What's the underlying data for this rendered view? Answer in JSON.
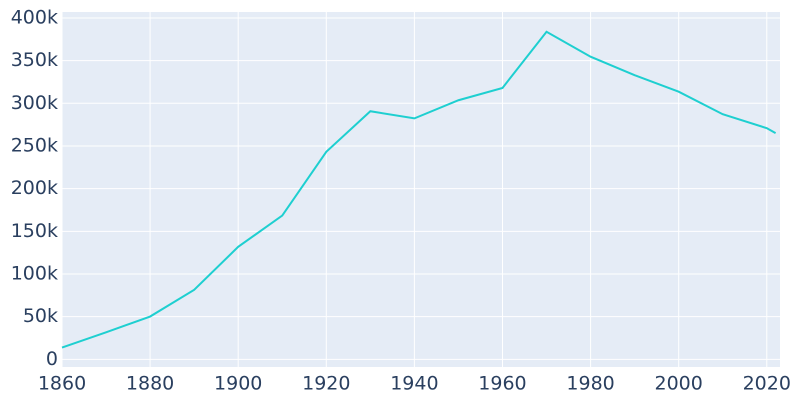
{
  "chart_data": {
    "type": "line",
    "x": [
      1860,
      1870,
      1880,
      1890,
      1900,
      1910,
      1920,
      1930,
      1940,
      1950,
      1960,
      1970,
      1980,
      1990,
      2000,
      2010,
      2020,
      2022
    ],
    "series": [
      {
        "color": "#1ecfd0",
        "values": [
          13768,
          31584,
          50137,
          81434,
          131822,
          168497,
          243164,
          290718,
          282349,
          303616,
          318003,
          383818,
          354635,
          332943,
          313619,
          287208,
          270871,
          265000
        ]
      }
    ],
    "xlim": [
      1860,
      2023
    ],
    "ylim": [
      -9000,
      407000
    ],
    "xticks": [
      1860,
      1880,
      1900,
      1920,
      1940,
      1960,
      1980,
      2000,
      2020
    ],
    "yticks": [
      0,
      {
        "value": 50000,
        "label": "50k"
      },
      {
        "value": 100000,
        "label": "100k"
      },
      {
        "value": 150000,
        "label": "150k"
      },
      {
        "value": 200000,
        "label": "200k"
      },
      {
        "value": 250000,
        "label": "250k"
      },
      {
        "value": 300000,
        "label": "300k"
      },
      {
        "value": 350000,
        "label": "350k"
      },
      {
        "value": 400000,
        "label": "400k"
      }
    ],
    "grid": true
  }
}
